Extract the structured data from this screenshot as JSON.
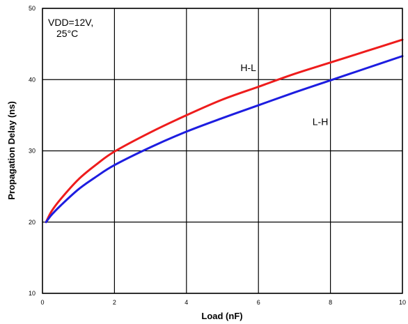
{
  "chart_data": {
    "type": "line",
    "title": "",
    "xlabel": "Load (nF)",
    "ylabel": "Propagation Delay (ns)",
    "xlim": [
      0,
      10
    ],
    "ylim": [
      10,
      50
    ],
    "x_ticks": [
      0,
      2,
      4,
      6,
      8,
      10
    ],
    "y_ticks": [
      10,
      20,
      30,
      40,
      50
    ],
    "grid": true,
    "legend": "none",
    "annotation": [
      "VDD=12V,",
      "25°C"
    ],
    "series": [
      {
        "name": "H-L",
        "color": "#ee1c1c",
        "x": [
          0.1,
          0.25,
          0.5,
          1,
          1.5,
          2,
          3,
          4,
          5,
          6,
          7,
          8,
          9,
          10
        ],
        "y": [
          20.0,
          21.5,
          23.2,
          26.0,
          28.1,
          29.9,
          32.6,
          35.0,
          37.2,
          39.0,
          40.8,
          42.4,
          44.0,
          45.6
        ]
      },
      {
        "name": "L-H",
        "color": "#1d1de0",
        "x": [
          0.1,
          0.25,
          0.5,
          1,
          1.5,
          2,
          3,
          4,
          5,
          6,
          7,
          8,
          9,
          10
        ],
        "y": [
          20.0,
          21.0,
          22.3,
          24.6,
          26.4,
          28.0,
          30.5,
          32.7,
          34.6,
          36.4,
          38.2,
          39.9,
          41.6,
          43.3
        ]
      }
    ],
    "series_labels": [
      {
        "name": "H-L",
        "x": 5.5,
        "y": 41.2
      },
      {
        "name": "L-H",
        "x": 7.5,
        "y": 33.6
      }
    ]
  }
}
